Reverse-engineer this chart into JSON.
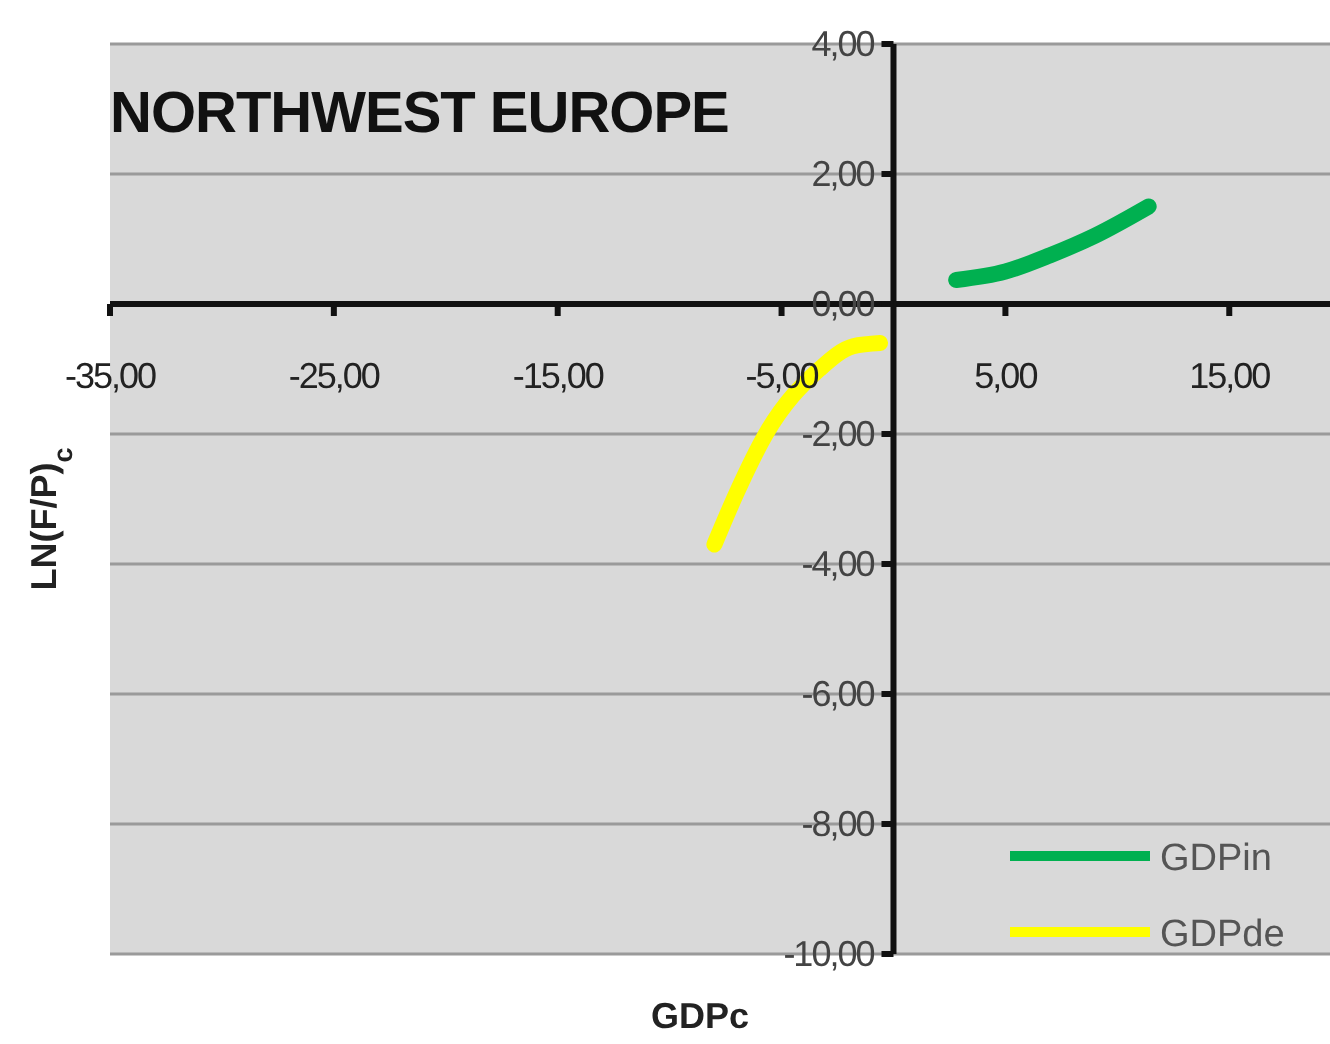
{
  "chart_data": {
    "type": "line",
    "title": "NORTHWEST EUROPE",
    "xlabel": "GDPc",
    "ylabel": "LN(F/P)$_{c}$",
    "xlim": [
      -35,
      19.5
    ],
    "ylim": [
      -10,
      4
    ],
    "xticks": [
      {
        "value": -35,
        "label": "-35,00"
      },
      {
        "value": -25,
        "label": "-25,00"
      },
      {
        "value": -15,
        "label": "-15,00"
      },
      {
        "value": -5,
        "label": "-5,00"
      },
      {
        "value": 5,
        "label": "5,00"
      },
      {
        "value": 15,
        "label": "15,00"
      }
    ],
    "yticks": [
      {
        "value": -10,
        "label": "-10,00"
      },
      {
        "value": -8,
        "label": "-8,00"
      },
      {
        "value": -6,
        "label": "-6,00"
      },
      {
        "value": -4,
        "label": "-4,00"
      },
      {
        "value": -2,
        "label": "-2,00"
      },
      {
        "value": 0,
        "label": "0,00"
      },
      {
        "value": 2,
        "label": "2,00"
      },
      {
        "value": 4,
        "label": "4,00"
      }
    ],
    "grid": "y",
    "legend": "bottom right",
    "marker": "none",
    "line_style": "solid",
    "series": [
      {
        "name": "GDPin",
        "color": "#00b050",
        "x": [
          2.8,
          5,
          7,
          9,
          11.4
        ],
        "values": [
          0.37,
          0.5,
          0.75,
          1.05,
          1.5
        ]
      },
      {
        "name": "GDPde",
        "color": "#ffff00",
        "x": [
          -8,
          -7,
          -5.7,
          -3.3,
          -1.8,
          -0.6
        ],
        "values": [
          -3.7,
          -2.9,
          -2,
          -1,
          -0.65,
          -0.6
        ]
      }
    ]
  }
}
